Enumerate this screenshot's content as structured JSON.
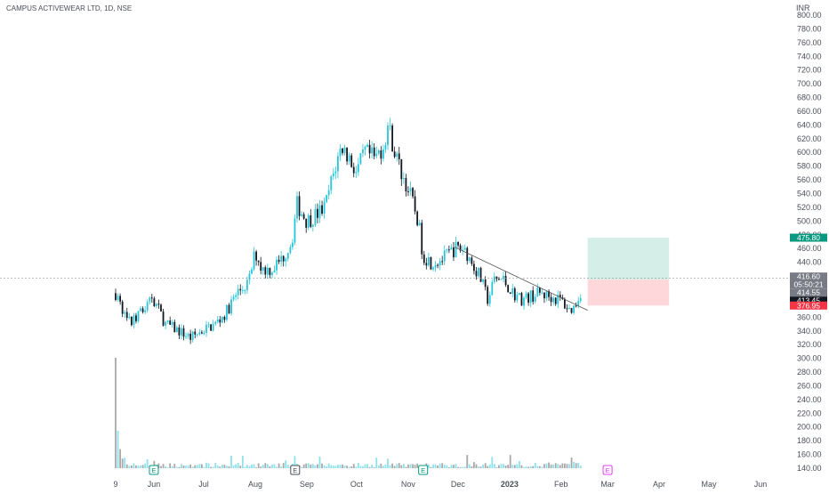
{
  "header": {
    "symbol_line": "CAMPUS ACTIVEWEAR LTD, 1D, NSE",
    "currency": "INR"
  },
  "colors": {
    "up": "#26c6da",
    "down": "#131722",
    "target_zone": "#d5efe8",
    "stop_zone": "#fdd7da",
    "target_tag": "#089981",
    "stop_tag": "#f23645",
    "last_tag": "#787b86"
  },
  "chart_data": {
    "type": "candlestick",
    "title": "CAMPUS ACTIVEWEAR LTD, 1D, NSE",
    "ylabel": "INR",
    "ylim": [
      133,
      810
    ],
    "y_ticks": [
      "800.00",
      "780.00",
      "760.00",
      "740.00",
      "720.00",
      "700.00",
      "680.00",
      "660.00",
      "640.00",
      "620.00",
      "600.00",
      "580.00",
      "560.00",
      "540.00",
      "520.00",
      "500.00",
      "480.00",
      "460.00",
      "440.00",
      "420.00",
      "400.00",
      "380.00",
      "360.00",
      "340.00",
      "320.00",
      "300.00",
      "280.00",
      "260.00",
      "240.00",
      "220.00",
      "200.00",
      "180.00",
      "160.00",
      "140.00"
    ],
    "x_ticks": [
      "9",
      "Jun",
      "Jul",
      "Aug",
      "Sep",
      "Oct",
      "Nov",
      "Dec",
      "2023",
      "Feb",
      "Mar",
      "Apr",
      "May",
      "Jun"
    ],
    "grid": false,
    "price_path": [
      [
        "2022-05-09",
        395
      ],
      [
        "2022-05-13",
        370
      ],
      [
        "2022-05-18",
        350
      ],
      [
        "2022-05-24",
        365
      ],
      [
        "2022-05-31",
        390
      ],
      [
        "2022-06-08",
        350
      ],
      [
        "2022-06-16",
        340
      ],
      [
        "2022-06-23",
        330
      ],
      [
        "2022-06-30",
        340
      ],
      [
        "2022-07-08",
        350
      ],
      [
        "2022-07-14",
        365
      ],
      [
        "2022-07-21",
        395
      ],
      [
        "2022-07-28",
        410
      ],
      [
        "2022-08-01",
        455
      ],
      [
        "2022-08-05",
        430
      ],
      [
        "2022-08-11",
        430
      ],
      [
        "2022-08-17",
        445
      ],
      [
        "2022-08-23",
        470
      ],
      [
        "2022-08-26",
        525
      ],
      [
        "2022-09-01",
        500
      ],
      [
        "2022-09-07",
        510
      ],
      [
        "2022-09-12",
        520
      ],
      [
        "2022-09-16",
        560
      ],
      [
        "2022-09-22",
        610
      ],
      [
        "2022-09-27",
        590
      ],
      [
        "2022-10-01",
        570
      ],
      [
        "2022-10-06",
        600
      ],
      [
        "2022-10-12",
        590
      ],
      [
        "2022-10-17",
        610
      ],
      [
        "2022-10-20",
        640
      ],
      [
        "2022-10-24",
        600
      ],
      [
        "2022-10-28",
        570
      ],
      [
        "2022-11-02",
        540
      ],
      [
        "2022-11-07",
        500
      ],
      [
        "2022-11-10",
        450
      ],
      [
        "2022-11-15",
        440
      ],
      [
        "2022-11-22",
        445
      ],
      [
        "2022-11-29",
        460
      ],
      [
        "2022-12-05",
        460
      ],
      [
        "2022-12-09",
        440
      ],
      [
        "2022-12-14",
        420
      ],
      [
        "2022-12-19",
        385
      ],
      [
        "2022-12-23",
        415
      ],
      [
        "2022-12-28",
        415
      ],
      [
        "2023-01-03",
        395
      ],
      [
        "2023-01-09",
        385
      ],
      [
        "2023-01-13",
        390
      ],
      [
        "2023-01-19",
        395
      ],
      [
        "2023-01-25",
        390
      ],
      [
        "2023-02-01",
        385
      ],
      [
        "2023-02-06",
        370
      ],
      [
        "2023-02-09",
        375
      ],
      [
        "2023-02-13",
        398
      ],
      [
        "2023-02-14",
        416.6
      ]
    ],
    "volume": {
      "listing_spike_ratio": 1.0,
      "note": ""
    },
    "trendline": {
      "from": [
        "2022-11-29",
        462
      ],
      "to": [
        "2023-02-17",
        370
      ]
    },
    "position": {
      "type": "long",
      "start": "2023-02-17",
      "end": "2023-04-07",
      "entry": 414.55,
      "target": 475.8,
      "stop": 376.95
    },
    "price_tags": [
      {
        "label": "475.80",
        "value": 475.8,
        "color": "#089981"
      },
      {
        "label": "416.60",
        "value": 416.6,
        "color": "#787b86",
        "sub": "05:50:21"
      },
      {
        "label": "414.55",
        "value": 414.55,
        "color": "#787b86"
      },
      {
        "label": "413.45",
        "value": 413.45,
        "color": "#131722"
      },
      {
        "label": "376.95",
        "value": 376.95,
        "color": "#f23645"
      }
    ],
    "events": [
      {
        "label": "E",
        "date": "2022-06-01",
        "color": "#089981"
      },
      {
        "label": "E",
        "date": "2022-08-25",
        "color": "#4a4e5a"
      },
      {
        "label": "E",
        "date": "2022-11-10",
        "color": "#089981"
      },
      {
        "label": "E",
        "date": "2023-03-01",
        "color": "#e040fb"
      }
    ]
  }
}
